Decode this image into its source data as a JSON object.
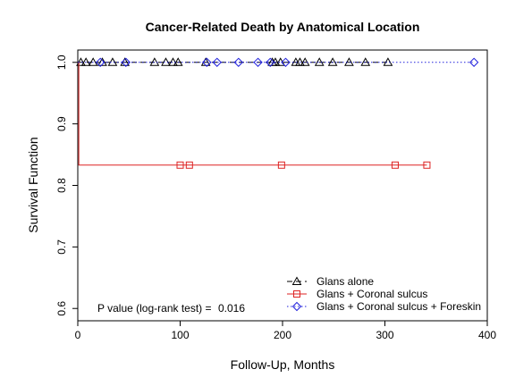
{
  "chart_data": {
    "type": "line",
    "step": true,
    "title": "Cancer-Related Death by Anatomical Location",
    "xlabel": "Follow-Up, Months",
    "ylabel": "Survival Function",
    "xlim": [
      0,
      400
    ],
    "ylim": [
      0.58,
      1.02
    ],
    "xticks": [
      0,
      100,
      200,
      300,
      400
    ],
    "yticks": [
      0.6,
      0.7,
      0.8,
      0.9,
      1.0
    ],
    "xtick_labels": [
      "0",
      "100",
      "200",
      "300",
      "400"
    ],
    "ytick_labels": [
      "0.6",
      "0.7",
      "0.8",
      "0.9",
      "1.0"
    ],
    "grid": false,
    "legend_position": "bottom-right",
    "annotation": {
      "label": "P value (log-rank test) =",
      "value": "0.016"
    },
    "series": [
      {
        "name": "Glans alone",
        "color": "#000000",
        "line_style": "dashed",
        "marker": "triangle",
        "steps": [
          {
            "x": 0,
            "y": 1.0
          },
          {
            "x": 303,
            "y": 1.0
          }
        ],
        "censored": [
          {
            "x": 3,
            "y": 1.0
          },
          {
            "x": 8,
            "y": 1.0
          },
          {
            "x": 15,
            "y": 1.0
          },
          {
            "x": 24,
            "y": 1.0
          },
          {
            "x": 34,
            "y": 1.0
          },
          {
            "x": 46,
            "y": 1.0
          },
          {
            "x": 75,
            "y": 1.0
          },
          {
            "x": 86,
            "y": 1.0
          },
          {
            "x": 93,
            "y": 1.0
          },
          {
            "x": 98,
            "y": 1.0
          },
          {
            "x": 125,
            "y": 1.0
          },
          {
            "x": 190,
            "y": 1.0
          },
          {
            "x": 193,
            "y": 1.0
          },
          {
            "x": 198,
            "y": 1.0
          },
          {
            "x": 213,
            "y": 1.0
          },
          {
            "x": 217,
            "y": 1.0
          },
          {
            "x": 222,
            "y": 1.0
          },
          {
            "x": 236,
            "y": 1.0
          },
          {
            "x": 249,
            "y": 1.0
          },
          {
            "x": 265,
            "y": 1.0
          },
          {
            "x": 281,
            "y": 1.0
          },
          {
            "x": 303,
            "y": 1.0
          }
        ]
      },
      {
        "name": "Glans + Coronal sulcus",
        "color": "#dd2222",
        "line_style": "solid",
        "marker": "square",
        "steps": [
          {
            "x": 0,
            "y": 1.0
          },
          {
            "x": 1,
            "y": 0.833
          },
          {
            "x": 341,
            "y": 0.833
          }
        ],
        "censored": [
          {
            "x": 100,
            "y": 0.833
          },
          {
            "x": 109,
            "y": 0.833
          },
          {
            "x": 199,
            "y": 0.833
          },
          {
            "x": 310,
            "y": 0.833
          },
          {
            "x": 341,
            "y": 0.833
          }
        ]
      },
      {
        "name": "Glans + Coronal sulcus + Foreskin",
        "color": "#2222dd",
        "line_style": "dotted",
        "marker": "diamond",
        "steps": [
          {
            "x": 0,
            "y": 1.0
          },
          {
            "x": 387,
            "y": 1.0
          }
        ],
        "censored": [
          {
            "x": 22,
            "y": 1.0
          },
          {
            "x": 47,
            "y": 1.0
          },
          {
            "x": 126,
            "y": 1.0
          },
          {
            "x": 136,
            "y": 1.0
          },
          {
            "x": 157,
            "y": 1.0
          },
          {
            "x": 176,
            "y": 1.0
          },
          {
            "x": 188,
            "y": 1.0
          },
          {
            "x": 203,
            "y": 1.0
          },
          {
            "x": 387,
            "y": 1.0
          }
        ]
      }
    ]
  }
}
